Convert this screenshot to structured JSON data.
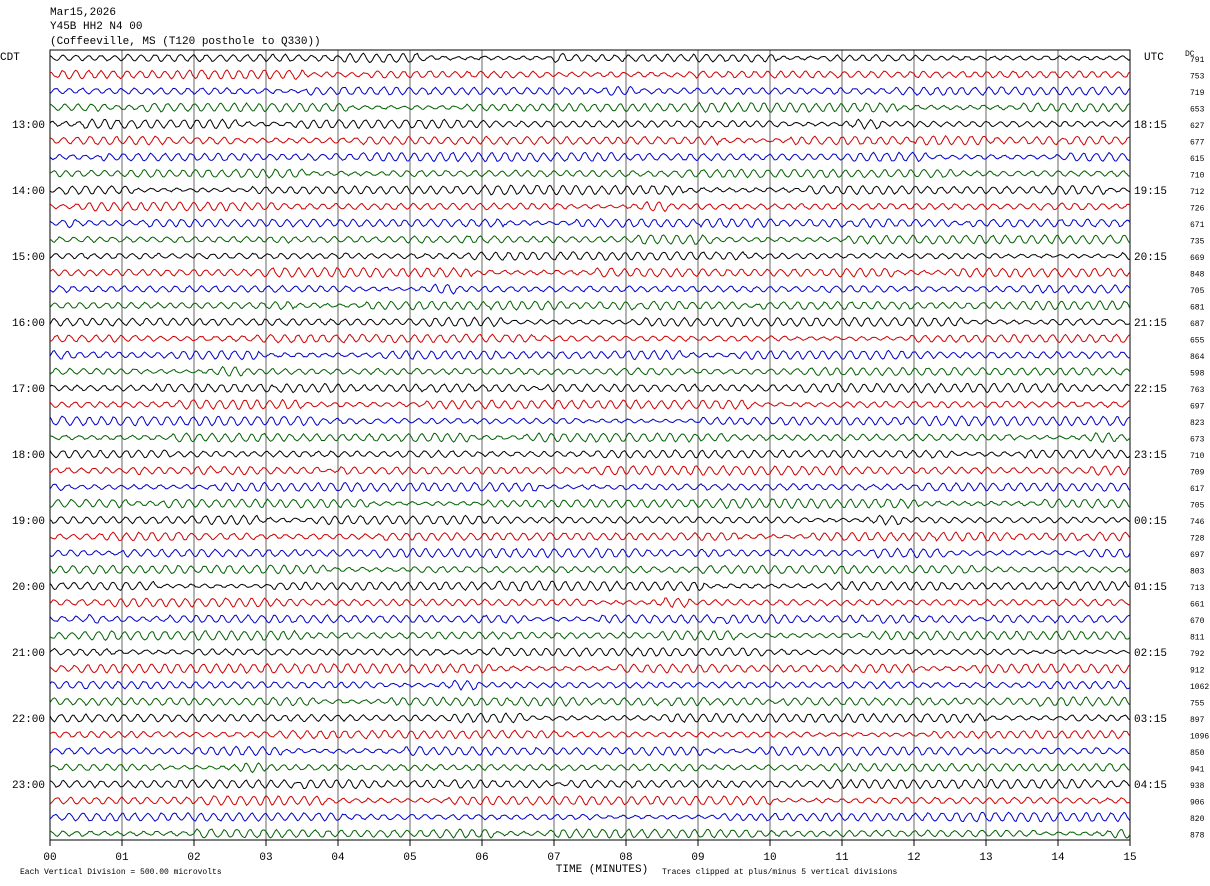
{
  "header": {
    "date": "Mar15,2026",
    "station": "Y45B HH2 N4 00",
    "location": "(Coffeeville, MS (T120 posthole to Q330))"
  },
  "left_zone": "CDT",
  "right_zone": "UTC",
  "dc_label": "DC",
  "hour_labels_left": [
    "13:00",
    "14:00",
    "15:00",
    "16:00",
    "17:00",
    "18:00",
    "19:00",
    "20:00",
    "21:00",
    "22:00",
    "23:00"
  ],
  "hour_labels_right": [
    "18:15",
    "19:15",
    "20:15",
    "21:15",
    "22:15",
    "23:15",
    "00:15",
    "01:15",
    "02:15",
    "03:15",
    "04:15"
  ],
  "dc_values": [
    791,
    753,
    719,
    653,
    627,
    677,
    615,
    710,
    712,
    726,
    671,
    735,
    669,
    848,
    705,
    681,
    687,
    655,
    864,
    598,
    763,
    697,
    823,
    673,
    710,
    709,
    617,
    705,
    746,
    728,
    697,
    803,
    713,
    661,
    670,
    811,
    792,
    912,
    1062,
    755,
    897,
    1096,
    850,
    941,
    938,
    906,
    820,
    878
  ],
  "x_ticks": [
    "00",
    "01",
    "02",
    "03",
    "04",
    "05",
    "06",
    "07",
    "08",
    "09",
    "10",
    "11",
    "12",
    "13",
    "14",
    "15"
  ],
  "x_axis_label": "TIME (MINUTES)",
  "footer": {
    "scale_note": "Each Vertical Division =  500.00 microvolts",
    "clip_note": "Traces clipped at plus/minus 5 vertical divisions"
  },
  "trace_colors": [
    "#000000",
    "#d00000",
    "#0000c8",
    "#006000"
  ]
}
